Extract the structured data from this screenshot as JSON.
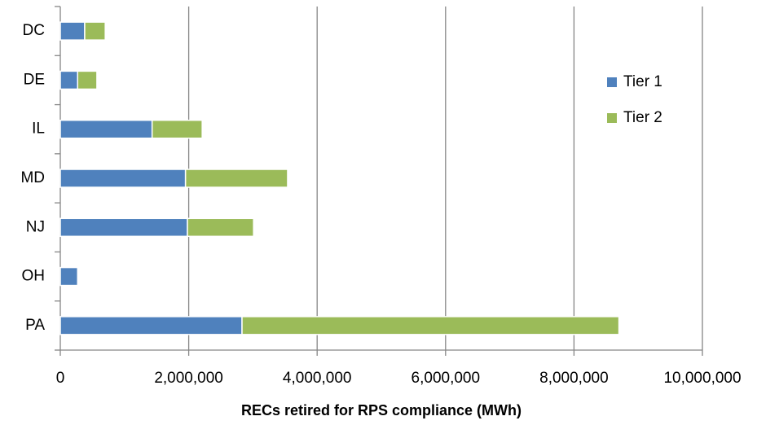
{
  "chart_data": {
    "type": "stacked-barh",
    "xlabel": "RECs retired for RPS compliance (MWh)",
    "categories": [
      "DC",
      "DE",
      "IL",
      "MD",
      "NJ",
      "OH",
      "PA"
    ],
    "series": [
      {
        "name": "Tier 1",
        "color": "#4f81bd",
        "values": [
          380000,
          270000,
          1430000,
          1950000,
          1980000,
          270000,
          2830000
        ]
      },
      {
        "name": "Tier 2",
        "color": "#9bbb59",
        "values": [
          320000,
          300000,
          780000,
          1590000,
          1030000,
          0,
          5870000
        ]
      }
    ],
    "xlim": [
      0,
      10000000
    ],
    "xticks": [
      0,
      {
        "value": 2000000,
        "label": "2,000,000"
      },
      {
        "value": 4000000,
        "label": "4,000,000"
      },
      {
        "value": 6000000,
        "label": "6,000,000"
      },
      {
        "value": 8000000,
        "label": "8,000,000"
      },
      {
        "value": 10000000,
        "label": "10,000,000"
      }
    ],
    "grid": true,
    "legend": "right"
  }
}
